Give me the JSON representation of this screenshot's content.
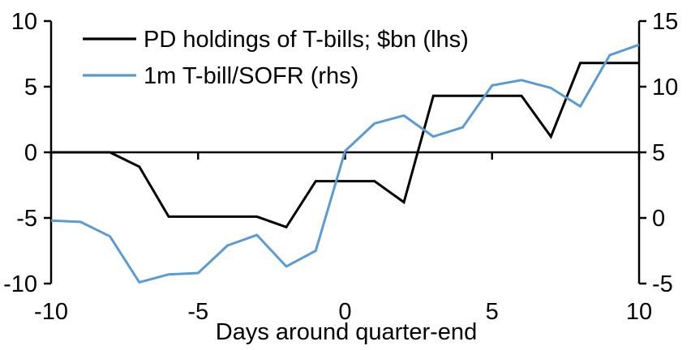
{
  "chart_data": {
    "type": "line",
    "title": "",
    "xlabel": "Days around quarter-end",
    "ylabel_left": "",
    "ylabel_right": "",
    "grid": false,
    "legend_position": "top-left",
    "x": [
      -10,
      -9,
      -8,
      -7,
      -6,
      -5,
      -4,
      -3,
      -2,
      -1,
      0,
      1,
      2,
      3,
      4,
      5,
      6,
      7,
      8,
      9,
      10
    ],
    "series": [
      {
        "name": "PD holdings of T-bills; $bn (lhs)",
        "axis": "left",
        "color": "#000000",
        "values": [
          0,
          0,
          0,
          -1.1,
          -4.9,
          -4.9,
          -4.9,
          -4.9,
          -5.7,
          -2.2,
          -2.2,
          -2.2,
          -3.8,
          4.3,
          4.3,
          4.3,
          4.3,
          1.2,
          6.8,
          6.8,
          6.8
        ]
      },
      {
        "name": "1m T-bill/SOFR (rhs)",
        "axis": "right",
        "color": "#5B9BD5",
        "values": [
          -0.2,
          -0.3,
          -1.4,
          -4.9,
          -4.3,
          -4.2,
          -2.1,
          -1.3,
          -3.7,
          -2.5,
          5.1,
          7.2,
          7.8,
          6.2,
          6.9,
          10.1,
          10.5,
          9.9,
          8.5,
          12.4,
          13.2
        ]
      }
    ],
    "left_axis": {
      "min": -10,
      "max": 10,
      "ticks": [
        10,
        5,
        0,
        -5,
        -10
      ]
    },
    "right_axis": {
      "min": -5,
      "max": 15,
      "ticks": [
        15,
        10,
        5,
        0,
        -5
      ]
    },
    "x_axis": {
      "min": -10,
      "max": 10,
      "ticks": [
        -10,
        -5,
        0,
        5,
        10
      ]
    },
    "colors": {
      "axis": "#000000",
      "text": "#000000",
      "background": "#FFFFFF"
    }
  }
}
